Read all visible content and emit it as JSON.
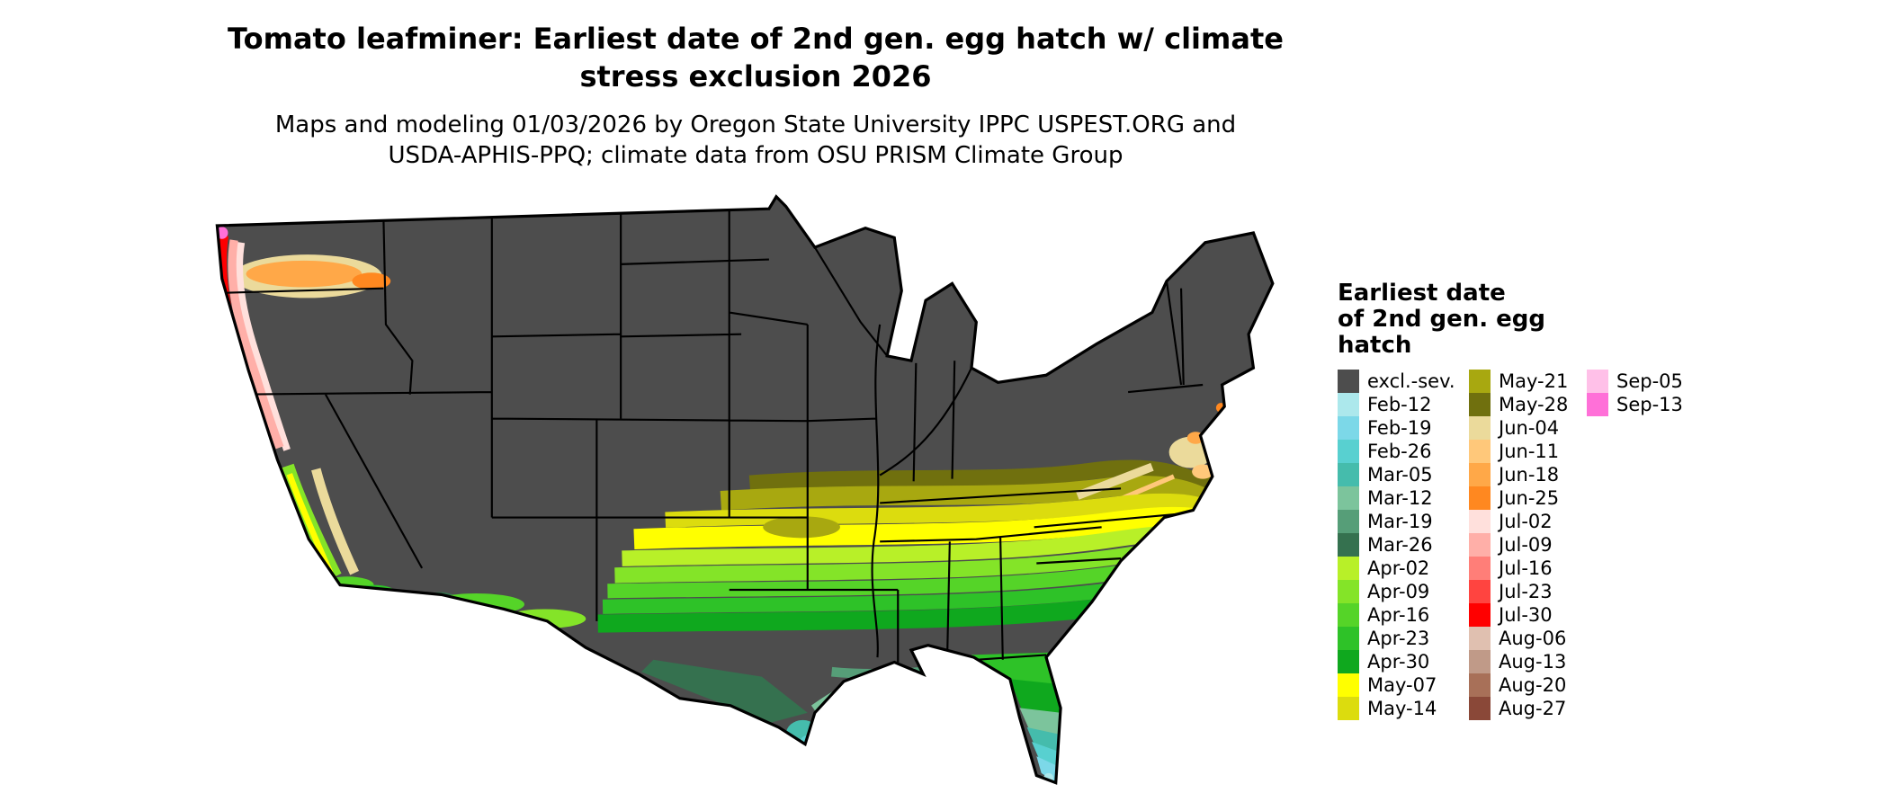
{
  "title": {
    "line1": "Tomato leafminer: Earliest date of 2nd gen. egg hatch w/ climate",
    "line2": "stress exclusion 2026"
  },
  "subtitle": {
    "line1": "Maps and modeling 01/03/2026 by Oregon State University IPPC USPEST.ORG and",
    "line2": "USDA-APHIS-PPQ; climate data from OSU PRISM Climate Group"
  },
  "legend": {
    "title_lines": [
      "Earliest date",
      "of 2nd gen. egg",
      "hatch"
    ],
    "columns": [
      {
        "entries": [
          {
            "label": "excl.-sev.",
            "color": "#4D4D4D"
          },
          {
            "label": "Feb-12",
            "color": "#ACE8EC"
          },
          {
            "label": "Feb-19",
            "color": "#7CD8E8"
          },
          {
            "label": "Feb-26",
            "color": "#58D0D0"
          },
          {
            "label": "Mar-05",
            "color": "#45BCAC"
          },
          {
            "label": "Mar-12",
            "color": "#7CC49C"
          },
          {
            "label": "Mar-19",
            "color": "#569E78"
          },
          {
            "label": "Mar-26",
            "color": "#35714F"
          },
          {
            "label": "Apr-02",
            "color": "#B8F028"
          },
          {
            "label": "Apr-09",
            "color": "#84E428"
          },
          {
            "label": "Apr-16",
            "color": "#55D428"
          },
          {
            "label": "Apr-23",
            "color": "#2EC228"
          },
          {
            "label": "Apr-30",
            "color": "#0FA81E"
          },
          {
            "label": "May-07",
            "color": "#FFFF00"
          },
          {
            "label": "May-14",
            "color": "#DCDC0E"
          }
        ]
      },
      {
        "entries": [
          {
            "label": "May-21",
            "color": "#A8A810"
          },
          {
            "label": "May-28",
            "color": "#70700E"
          },
          {
            "label": "Jun-04",
            "color": "#EBDA9B"
          },
          {
            "label": "Jun-11",
            "color": "#FFC87A"
          },
          {
            "label": "Jun-18",
            "color": "#FFA848"
          },
          {
            "label": "Jun-25",
            "color": "#FF8820"
          },
          {
            "label": "Jul-02",
            "color": "#FFE0DC"
          },
          {
            "label": "Jul-09",
            "color": "#FFAFA8"
          },
          {
            "label": "Jul-16",
            "color": "#FF7E78"
          },
          {
            "label": "Jul-23",
            "color": "#FF4440"
          },
          {
            "label": "Jul-30",
            "color": "#FF0000"
          },
          {
            "label": "Aug-06",
            "color": "#E0C0B0"
          },
          {
            "label": "Aug-13",
            "color": "#C09A88"
          },
          {
            "label": "Aug-20",
            "color": "#A87058"
          },
          {
            "label": "Aug-27",
            "color": "#8A4838"
          }
        ]
      },
      {
        "entries": [
          {
            "label": "Sep-05",
            "color": "#FFC0E8"
          },
          {
            "label": "Sep-13",
            "color": "#FF70D8"
          }
        ]
      }
    ]
  },
  "map": {
    "region": "Continental United States",
    "background": "#FFFFFF",
    "state_border_color": "#000000",
    "excluded_label": "excl.-sev."
  }
}
